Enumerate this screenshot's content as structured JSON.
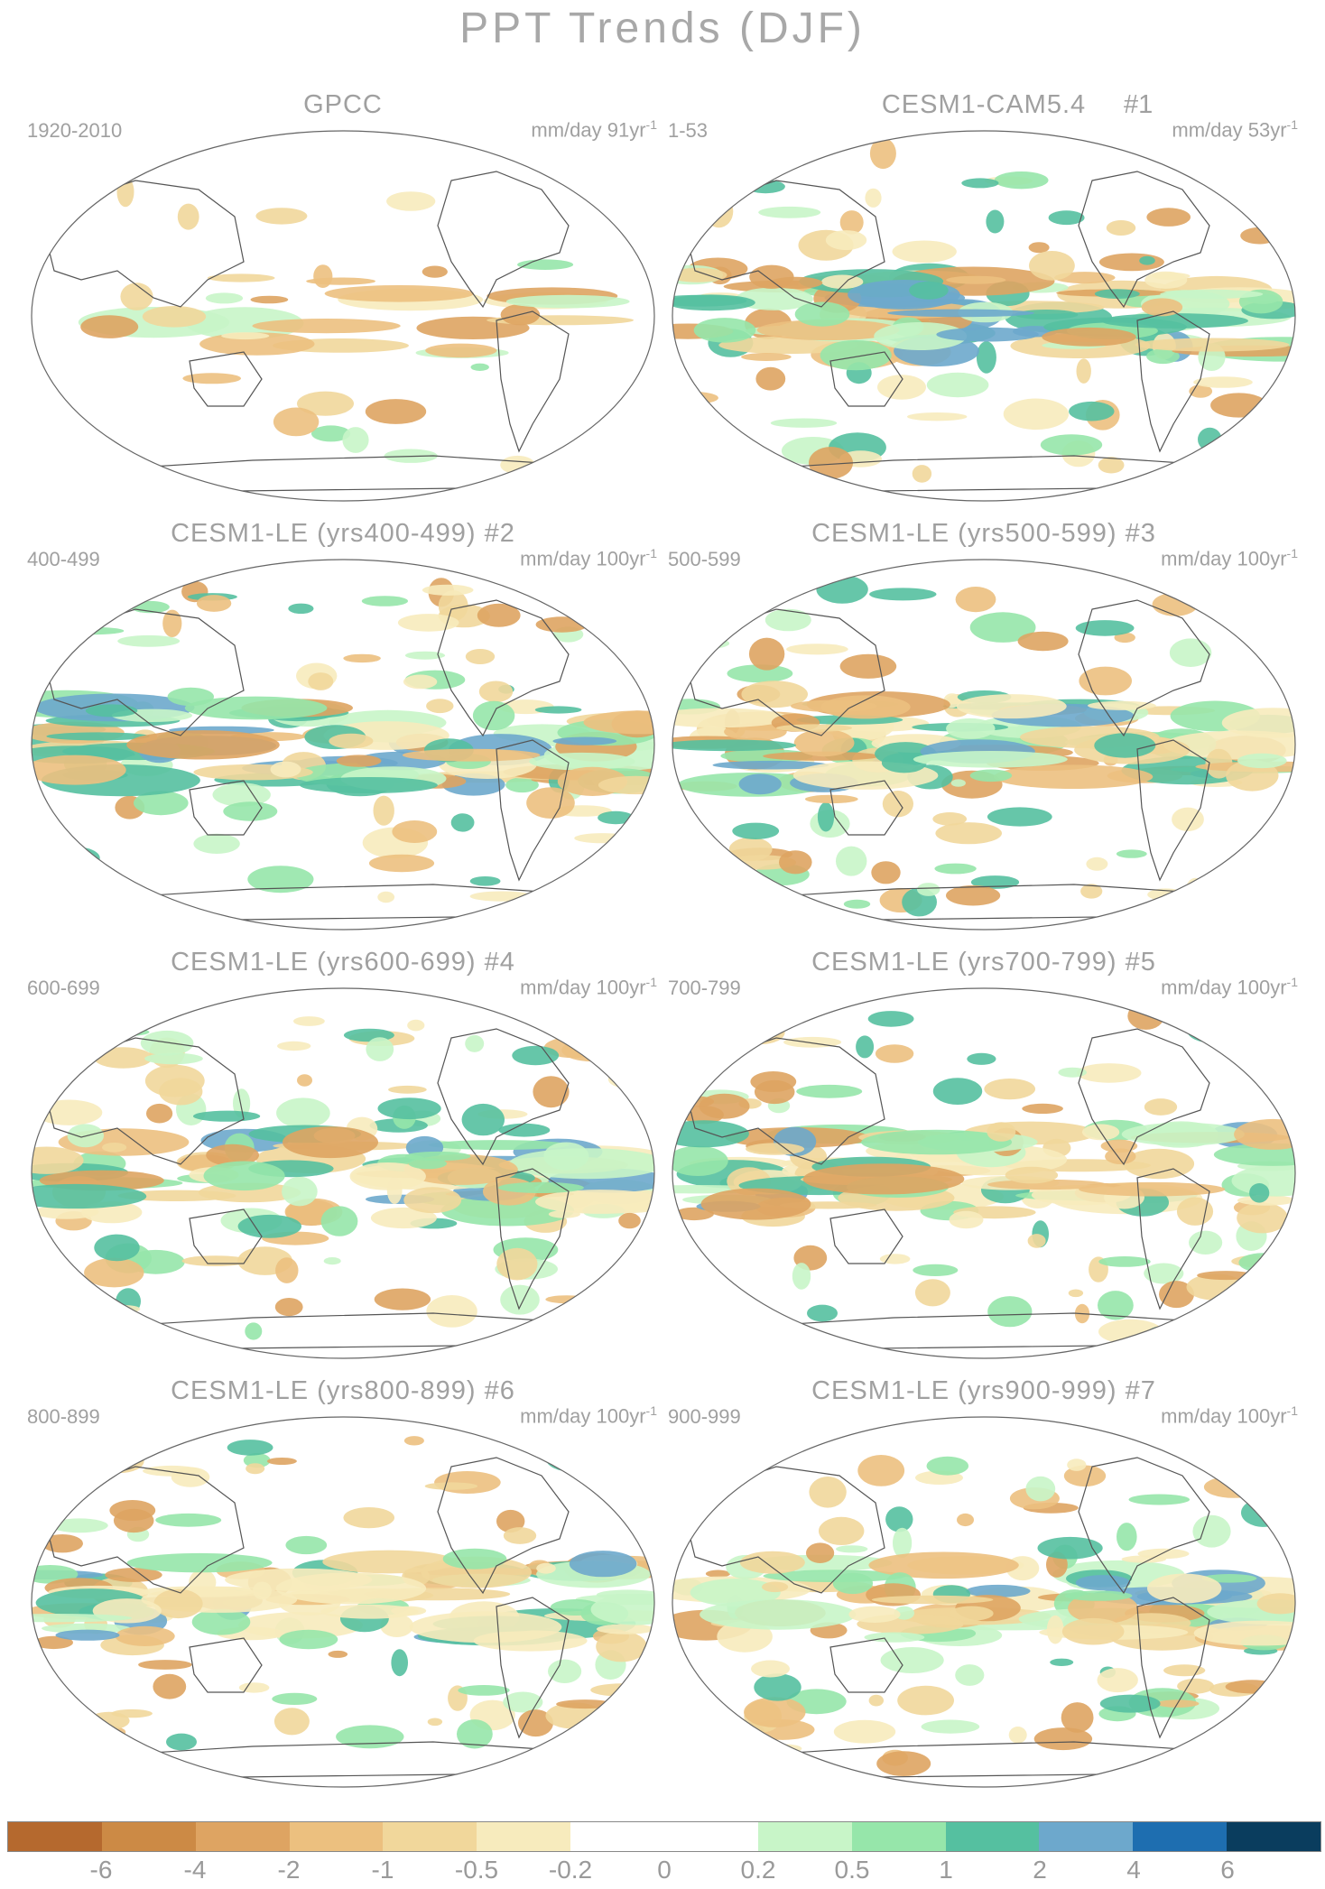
{
  "title": "PPT Trends (DJF)",
  "panels": [
    {
      "title": "GPCC",
      "number": "",
      "period": "1920-2010",
      "units": "mm/day 91yr",
      "units_exp": "-1"
    },
    {
      "title": "CESM1-CAM5.4",
      "number": "#1",
      "period": "1-53",
      "units": "mm/day 53yr",
      "units_exp": "-1"
    },
    {
      "title": "CESM1-LE (yrs400-499) #2",
      "number": "",
      "period": "400-499",
      "units": "mm/day 100yr",
      "units_exp": "-1"
    },
    {
      "title": "CESM1-LE (yrs500-599) #3",
      "number": "",
      "period": "500-599",
      "units": "mm/day 100yr",
      "units_exp": "-1"
    },
    {
      "title": "CESM1-LE (yrs600-699) #4",
      "number": "",
      "period": "600-699",
      "units": "mm/day 100yr",
      "units_exp": "-1"
    },
    {
      "title": "CESM1-LE (yrs700-799) #5",
      "number": "",
      "period": "700-799",
      "units": "mm/day 100yr",
      "units_exp": "-1"
    },
    {
      "title": "CESM1-LE (yrs800-899) #6",
      "number": "",
      "period": "800-899",
      "units": "mm/day 100yr",
      "units_exp": "-1"
    },
    {
      "title": "CESM1-LE (yrs900-999) #7",
      "number": "",
      "period": "900-999",
      "units": "mm/day 100yr",
      "units_exp": "-1"
    }
  ],
  "colorbar": {
    "colors": [
      "#b5692e",
      "#cc8a45",
      "#dea462",
      "#ecc07f",
      "#f1d79b",
      "#f7ebbd",
      "#ffffff",
      "#ffffff",
      "#c8f5c8",
      "#96e6aa",
      "#55c0a0",
      "#6da8cc",
      "#1e6eb0",
      "#0a3d5e"
    ],
    "labels": [
      "-6",
      "-4",
      "-2",
      "-1",
      "-0.5",
      "-0.2",
      "0",
      "0.2",
      "0.5",
      "1",
      "2",
      "4",
      "6"
    ],
    "positive_color": "#55c0a0",
    "negative_color": "#dea462"
  }
}
